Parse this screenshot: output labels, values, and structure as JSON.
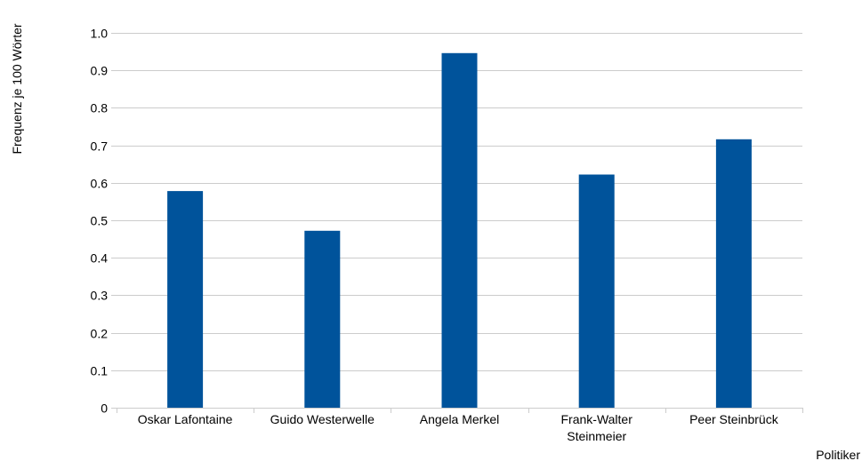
{
  "chart_data": {
    "type": "bar",
    "title": "",
    "xlabel": "Politiker",
    "ylabel": "Frequenz je 100 Wörter",
    "categories": [
      [
        "Oskar Lafontaine"
      ],
      [
        "Guido Westerwelle"
      ],
      [
        "Angela Merkel"
      ],
      [
        "Frank-Walter",
        "Steinmeier"
      ],
      [
        "Peer Steinbrück"
      ]
    ],
    "values": [
      0.578,
      0.472,
      0.946,
      0.622,
      0.716
    ],
    "ylim": [
      0,
      1.0
    ],
    "yticks": [
      "0",
      "0.1",
      "0.2",
      "0.3",
      "0.4",
      "0.5",
      "0.6",
      "0.7",
      "0.8",
      "0.9",
      "1.0"
    ],
    "ytick_values": [
      0,
      0.1,
      0.2,
      0.3,
      0.4,
      0.5,
      0.6,
      0.7,
      0.8,
      0.9,
      1.0
    ],
    "grid": true,
    "legend": "none",
    "bar_color": "#00539b",
    "grid_color": "#cccccc"
  }
}
